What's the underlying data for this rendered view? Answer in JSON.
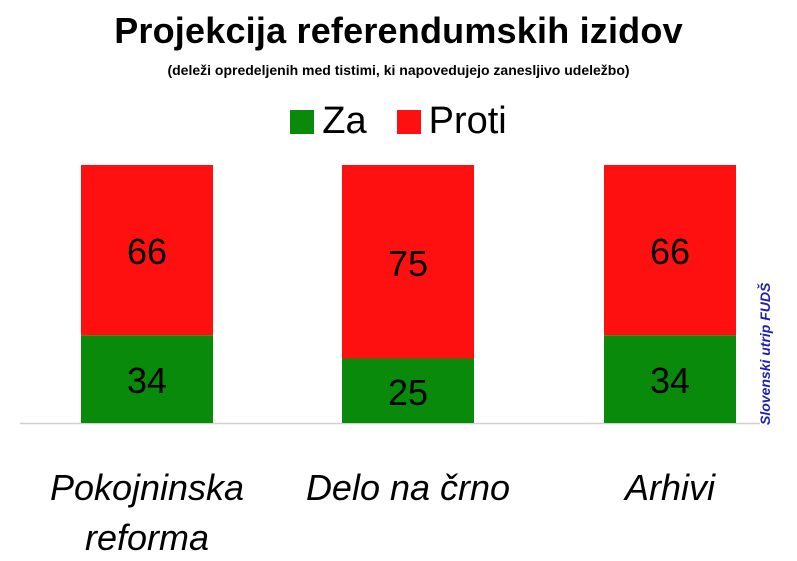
{
  "chart_data": {
    "type": "bar",
    "stacked": true,
    "title": "Projekcija referendumskih izidov",
    "subtitle": "(deleži opredeljenih med tistimi, ki napovedujejo zanesljivo udeležbo)",
    "categories": [
      "Pokojninska reforma",
      "Delo na črno",
      "Arhivi"
    ],
    "category_lines": [
      [
        "Pokojninska",
        "reforma"
      ],
      [
        "Delo na črno"
      ],
      [
        "Arhivi"
      ]
    ],
    "series": [
      {
        "name": "Za",
        "values": [
          34,
          25,
          34
        ],
        "color": "#0a8a0a"
      },
      {
        "name": "Proti",
        "values": [
          66,
          75,
          66
        ],
        "color": "#ff1010"
      }
    ],
    "ylim": [
      0,
      100
    ],
    "legend_position": "top-center",
    "grid": false
  },
  "source": "Slovenski utrip FUDŠ"
}
